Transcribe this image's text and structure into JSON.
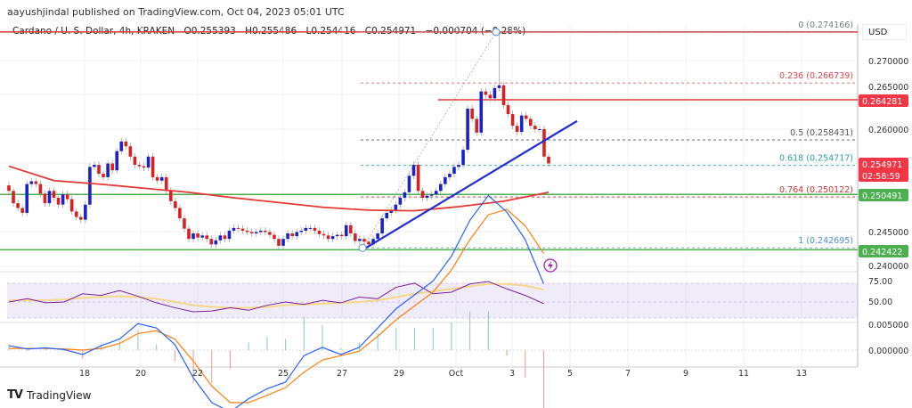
{
  "header": {
    "publisher": "aayushjindal published on TradingView.com, Oct 04, 2023 05:01 UTC",
    "symbol": "Cardano / U. S. Dollar, 4h, KRAKEN",
    "open": "O0.255393",
    "high": "H0.255486",
    "low": "L0.254416",
    "close": "C0.254971",
    "change": "−0.000704 (−0.28%)"
  },
  "axis": {
    "currency": "USD",
    "price_ticks": [
      "0.270000",
      "0.265000",
      "0.260000",
      "0.245000",
      "0.240000"
    ],
    "rsi_ticks": [
      "75.00",
      "50.00"
    ],
    "macd_ticks": [
      "0.005000",
      "0.000000"
    ],
    "date_ticks": [
      "18",
      "20",
      "22",
      "25",
      "27",
      "29",
      "Oct",
      "3",
      "5",
      "7",
      "9",
      "11",
      "13"
    ]
  },
  "price_tags": {
    "resistance": "0.264281",
    "last_price": "0.254971",
    "countdown": "02:58:59",
    "support_upper": "0.250491",
    "support_lower": "0.242422"
  },
  "fib_levels": [
    {
      "label": "0 (0.274166)",
      "color": "#787b86"
    },
    {
      "label": "0.236 (0.266739)",
      "color": "#e0454d"
    },
    {
      "label": "0.5 (0.258431)",
      "color": "#555555"
    },
    {
      "label": "0.618 (0.254717)",
      "color": "#26a69a"
    },
    {
      "label": "0.764 (0.250122)",
      "color": "#d32f2f"
    },
    {
      "label": "1 (0.242695)",
      "color": "#4a90d9"
    }
  ],
  "colors": {
    "up": "#1a23c8",
    "down": "#d92121",
    "ma": "#e53935",
    "trendline": "#1f2fd1",
    "support": "#4caf50",
    "resistance": "#e53935",
    "rsi": "#7b1fa2",
    "rsi_ma": "#f5d98b",
    "macd": "#2962ff",
    "signal": "#ff7f0e"
  },
  "chart_data": {
    "type": "candlestick",
    "interval": "4h",
    "closes": [
      0.251,
      0.2492,
      0.2485,
      0.2478,
      0.252,
      0.2524,
      0.252,
      0.2506,
      0.2492,
      0.251,
      0.25,
      0.249,
      0.2505,
      0.2498,
      0.248,
      0.2472,
      0.2468,
      0.249,
      0.2545,
      0.2548,
      0.2535,
      0.253,
      0.255,
      0.254,
      0.2568,
      0.2582,
      0.2575,
      0.256,
      0.2548,
      0.2546,
      0.2544,
      0.256,
      0.253,
      0.2525,
      0.253,
      0.251,
      0.2495,
      0.2485,
      0.247,
      0.2455,
      0.244,
      0.2448,
      0.2442,
      0.2445,
      0.244,
      0.2432,
      0.2438,
      0.2445,
      0.244,
      0.2452,
      0.2456,
      0.2455,
      0.2452,
      0.245,
      0.2448,
      0.245,
      0.2452,
      0.245,
      0.2446,
      0.244,
      0.243,
      0.244,
      0.2448,
      0.2444,
      0.245,
      0.2452,
      0.2456,
      0.2456,
      0.2452,
      0.2447,
      0.2445,
      0.244,
      0.2444,
      0.2446,
      0.2444,
      0.246,
      0.2448,
      0.2437,
      0.244,
      0.2436,
      0.2432,
      0.244,
      0.2448,
      0.247,
      0.2478,
      0.2482,
      0.249,
      0.25,
      0.2508,
      0.2532,
      0.2548,
      0.251,
      0.25,
      0.2503,
      0.2505,
      0.251,
      0.252,
      0.253,
      0.2535,
      0.2545,
      0.2548,
      0.257,
      0.263,
      0.2615,
      0.2595,
      0.2655,
      0.265,
      0.2645,
      0.266,
      0.2664,
      0.2635,
      0.2622,
      0.2605,
      0.2596,
      0.262,
      0.2615,
      0.2605,
      0.26,
      0.26,
      0.256,
      0.255
    ],
    "swing_high": 0.274166,
    "swing_low": 0.242695,
    "moving_average_every_10": [
      0.2546,
      0.2525,
      0.252,
      0.2514,
      0.2508,
      0.25,
      0.2493,
      0.2486,
      0.2482,
      0.2481,
      0.2487,
      0.2495,
      0.2508
    ],
    "trendline": [
      0.2424,
      0.2612
    ],
    "horizontal_levels": {
      "resistance_top": 0.274166,
      "resistance": 0.264281,
      "support_upper": 0.250491,
      "support_lower": 0.242422
    },
    "rsi_every_5": [
      50,
      54,
      49,
      50,
      60,
      58,
      64,
      57,
      49,
      43,
      38,
      39,
      43,
      40,
      46,
      50,
      47,
      52,
      49,
      56,
      54,
      68,
      73,
      60,
      62,
      72,
      75,
      66,
      58,
      48
    ],
    "rsi_ma_every_5": [
      52,
      52,
      52,
      53,
      55,
      56,
      57,
      56,
      54,
      50,
      46,
      44,
      43,
      43,
      44,
      46,
      47,
      48,
      49,
      50,
      52,
      56,
      60,
      63,
      66,
      69,
      72,
      72,
      70,
      65
    ],
    "macd_every_5": [
      0.0008,
      0.0002,
      0.0004,
      0.0001,
      -0.0008,
      0.0008,
      0.002,
      0.0048,
      0.004,
      0.001,
      -0.005,
      -0.0095,
      -0.0112,
      -0.0088,
      -0.007,
      -0.0058,
      -0.001,
      0.0005,
      -0.0008,
      0.0005,
      0.004,
      0.0075,
      0.01,
      0.0125,
      0.017,
      0.0235,
      0.028,
      0.025,
      0.02,
      0.012
    ],
    "signal_every_5": [
      0.0003,
      0.0003,
      0.0003,
      0.0002,
      0.0,
      0.0003,
      0.0012,
      0.003,
      0.0035,
      0.002,
      -0.002,
      -0.0065,
      -0.0095,
      -0.0095,
      -0.0082,
      -0.0068,
      -0.004,
      -0.0018,
      -0.001,
      -0.0002,
      0.0025,
      0.0055,
      0.008,
      0.0105,
      0.0145,
      0.02,
      0.0245,
      0.0255,
      0.0225,
      0.0175
    ]
  }
}
